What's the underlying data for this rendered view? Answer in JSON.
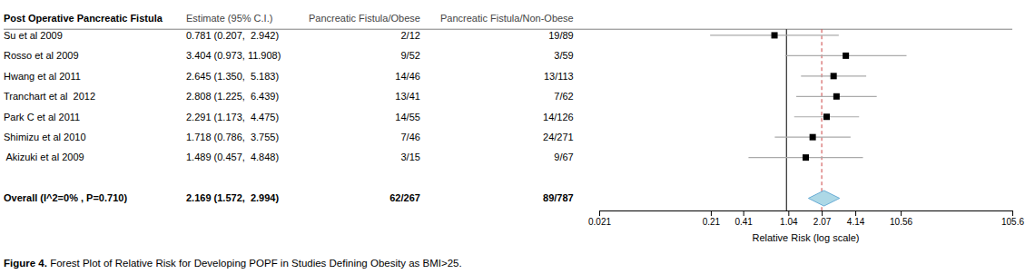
{
  "chart_data": {
    "type": "forest",
    "columns": [
      "Post Operative Pancreatic Fistula",
      "Estimate (95% C.I.)",
      "Pancreatic Fistula/Obese",
      "Pancreatic Fistula/Non-Obese"
    ],
    "categories": [
      "Su et al 2009",
      "Rosso et al 2009",
      "Hwang et al 2011",
      "Tranchart et al  2012",
      "Park C et al 2011",
      "Shimizu et al 2010",
      " Akizuki et al 2009"
    ],
    "values": [
      0.781,
      3.404,
      2.645,
      2.808,
      2.291,
      1.718,
      1.489
    ],
    "ci_low": [
      0.207,
      0.973,
      1.35,
      1.225,
      1.173,
      0.786,
      0.457
    ],
    "ci_high": [
      2.942,
      11.908,
      5.183,
      6.439,
      4.475,
      3.755,
      4.848
    ],
    "value_labels": [
      "0.781 (0.207,  2.942)",
      "3.404 (0.973, 11.908)",
      "2.645 (1.350,  5.183)",
      "2.808 (1.225,  6.439)",
      "2.291 (1.173,  4.475)",
      "1.718 (0.786,  3.755)",
      "1.489 (0.457,  4.848)"
    ],
    "pf_obese": [
      "2/12",
      "9/52",
      "14/46",
      "13/41",
      "14/55",
      "7/46",
      "3/15"
    ],
    "pf_nonobese": [
      "19/89",
      "3/59",
      "13/113",
      "7/62",
      "14/126",
      "24/271",
      "9/67"
    ],
    "color": "#000000",
    "ci_color": "#aaaaaa",
    "overall": {
      "label": "Overall (I^2=0% , P=0.710)",
      "value": 2.169,
      "ci_low": 1.572,
      "ci_high": 2.994,
      "value_label": "2.169 (1.572,  2.994)",
      "pf_obese": "62/267",
      "pf_nonobese": "89/787",
      "color": "#add8e6",
      "edge_color": "#6baed6"
    },
    "reference_lines": [
      {
        "value": 1.0,
        "color": "#000000",
        "line_style": "solid"
      },
      {
        "value": 2.07,
        "color": "#cc4444",
        "line_style": "dashed"
      }
    ],
    "log": "x",
    "xlim": [
      0.021,
      105.6
    ],
    "xticks": [
      0.021,
      0.21,
      0.41,
      1.04,
      2.07,
      4.14,
      10.56,
      105.6
    ],
    "xlabel": "Relative Risk (log scale)",
    "caption_bold": "Figure 4.",
    "caption": " Forest Plot of Relative Risk for Developing POPF in Studies Defining Obesity as BMI>25."
  }
}
